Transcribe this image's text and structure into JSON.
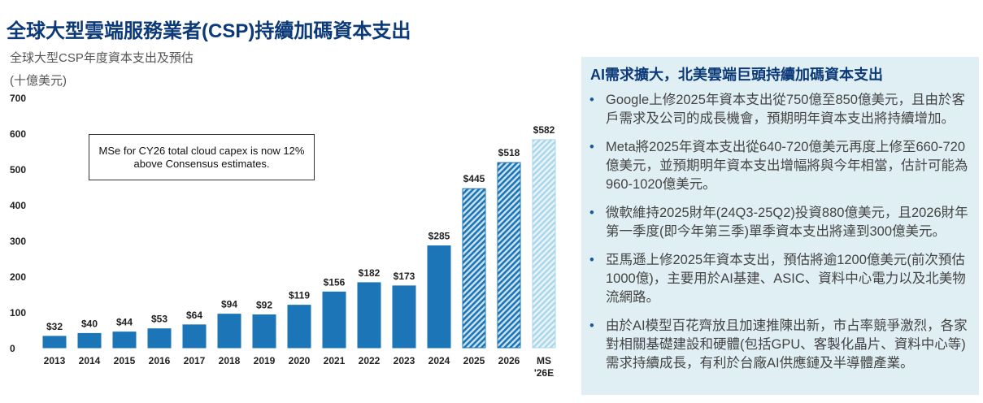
{
  "title": "全球大型雲端服務業者(CSP)持續加碼資本支出",
  "chart_data": {
    "type": "bar",
    "title": "全球大型CSP年度資本支出及預估",
    "ylabel": "(十億美元)",
    "ylim": [
      0,
      700
    ],
    "yticks": [
      0,
      100,
      200,
      300,
      400,
      500,
      600,
      700
    ],
    "categories": [
      "2013",
      "2014",
      "2015",
      "2016",
      "2017",
      "2018",
      "2019",
      "2020",
      "2021",
      "2022",
      "2023",
      "2024",
      "2025",
      "2026",
      "MS '26E"
    ],
    "values": [
      32,
      40,
      44,
      53,
      64,
      94,
      92,
      119,
      156,
      182,
      173,
      285,
      445,
      518,
      582
    ],
    "data_labels": [
      "$32",
      "$40",
      "$44",
      "$53",
      "$64",
      "$94",
      "$92",
      "$119",
      "$156",
      "$182",
      "$173",
      "$285",
      "$445",
      "$518",
      "$582"
    ],
    "styles": [
      "solid",
      "solid",
      "solid",
      "solid",
      "solid",
      "solid",
      "solid",
      "solid",
      "solid",
      "solid",
      "solid",
      "solid",
      "hatched",
      "hatched",
      "light-hatched"
    ],
    "colors": {
      "solid": "#1b75b6",
      "hatched": "#1b75b6",
      "light": "#a9d6e8"
    },
    "annotation": "MSe for CY26 total cloud capex is now 12% above Consensus estimates.",
    "grid": false
  },
  "panel": {
    "heading": "AI需求擴大，北美雲端巨頭持續加碼資本支出",
    "bullets": [
      "Google上修2025年資本支出從750億至850億美元，且由於客戶需求及公司的成長機會，預期明年資本支出將持續增加。",
      "Meta將2025年資本支出從640-720億美元再度上修至660-720億美元，並預期明年資本支出增幅將與今年相當，估計可能為960-1020億美元。",
      "微軟維持2025財年(24Q3-25Q2)投資880億美元，且2026財年第一季度(即今年第三季)單季資本支出將達到300億美元。",
      "亞馬遜上修2025年資本支出，預估將逾1200億美元(前次預估1000億)，主要用於AI基建、ASIC、資料中心電力以及北美物流網路。",
      "由於AI模型百花齊放且加速推陳出新，市占率競爭激烈，各家對相關基礎建設和硬體(包括GPU、客製化晶片、資料中心等)需求持續成長，有利於台廠AI供應鏈及半導體產業。"
    ],
    "bullet_color": "#1a5a9a",
    "background": "#e0eff4"
  }
}
